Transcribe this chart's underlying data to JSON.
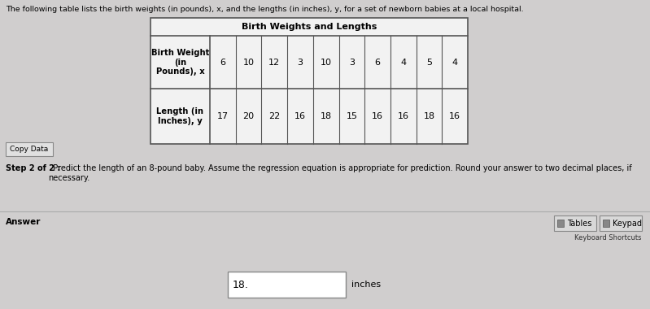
{
  "title_text": "The following table lists the birth weights (in pounds), x, and the lengths (in inches), y, for a set of newborn babies at a local hospital.",
  "table_title": "Birth Weights and Lengths",
  "row1_label": "Birth Weight\n(in\nPounds), x",
  "row2_label": "Length (in\nInches), y",
  "row1_values": [
    "6",
    "10",
    "12",
    "3",
    "10",
    "3",
    "6",
    "4",
    "5",
    "4"
  ],
  "row2_values": [
    "17",
    "20",
    "22",
    "16",
    "18",
    "15",
    "16",
    "16",
    "18",
    "16"
  ],
  "copy_data_btn": "Copy Data",
  "step_text_bold": "Step 2 of 2 :",
  "step_text_normal": "  Predict the length of an 8-pound baby. Assume the regression equation is appropriate for prediction. Round your answer to two decimal places, if\nnecessary.",
  "answer_label": "Answer",
  "tables_btn": "Tables",
  "keypad_btn": "Keypad",
  "keyboard_shortcuts": "Keyboard Shortcuts",
  "answer_value": "18.",
  "answer_unit": "inches",
  "bg_color_top": "#d0cece",
  "bg_color_bottom": "#d0cece",
  "table_bg": "#f2f2f2",
  "answer_section_bg": "#d0cece",
  "separator_color": "#aaaaaa",
  "border_color": "#555555",
  "text_color": "#000000",
  "btn_color": "#c8c8c8",
  "btn_border": "#888888"
}
